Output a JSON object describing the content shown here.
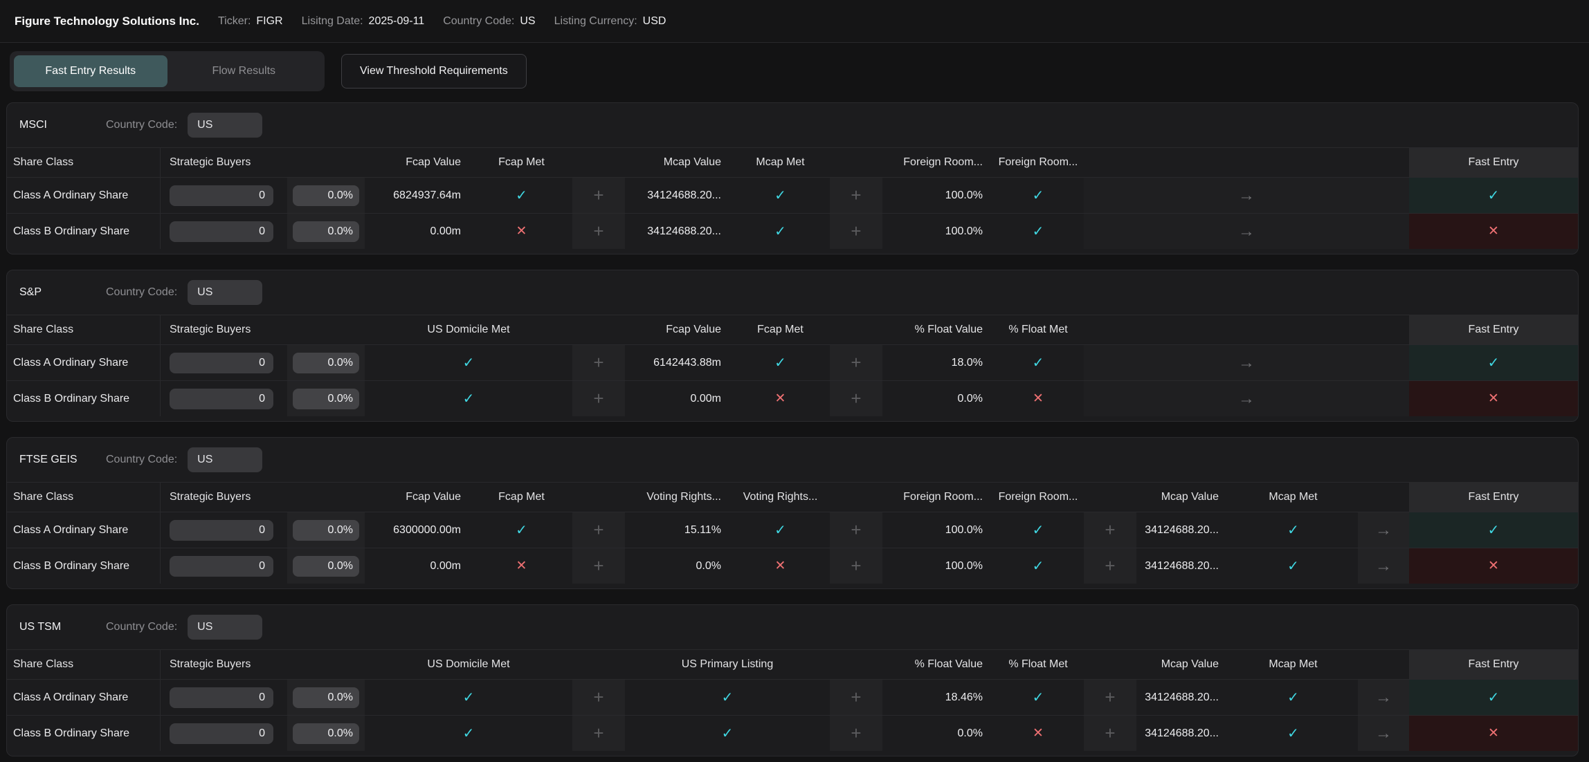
{
  "topbar": {
    "company": "Figure Technology Solutions Inc.",
    "fields": [
      {
        "label": "Ticker:",
        "value": "FIGR"
      },
      {
        "label": "Lisitng Date:",
        "value": "2025-09-11"
      },
      {
        "label": "Country Code:",
        "value": "US"
      },
      {
        "label": "Listing Currency:",
        "value": "USD"
      }
    ]
  },
  "tabs": {
    "fast_entry": "Fast Entry Results",
    "flow": "Flow Results",
    "view_threshold": "View Threshold Requirements"
  },
  "icons": {
    "plus": "+",
    "arrow": "→"
  },
  "colors": {
    "accent_teal": "#3f595c",
    "pass": "#40d7e2",
    "fail": "#ef7173",
    "fast_pass_bg": "#1b2625",
    "fast_fail_bg": "#271415"
  },
  "sections": [
    {
      "title": "MSCI",
      "country_label": "Country Code:",
      "country_code": "US",
      "columns": [
        "Share Class",
        "Strategic Buyers",
        "Fcap Value",
        "Fcap Met",
        "Mcap Value",
        "Mcap Met",
        "Foreign Room...",
        "Foreign Room...",
        "Fast Entry"
      ],
      "rows": [
        {
          "name": "Class A Ordinary Share",
          "buyers": "0",
          "buyers_pct": "0.0%",
          "fcap_value": "6824937.64m",
          "fcap_met": {
            "glyph": "✓",
            "status": "pass"
          },
          "mcap_value": "34124688.20...",
          "mcap_met": {
            "glyph": "✓",
            "status": "pass"
          },
          "foreign_room_value": "100.0%",
          "foreign_room_met": {
            "glyph": "✓",
            "status": "pass"
          },
          "fast_entry": {
            "glyph": "✓",
            "status": "pass"
          }
        },
        {
          "name": "Class B Ordinary Share",
          "buyers": "0",
          "buyers_pct": "0.0%",
          "fcap_value": "0.00m",
          "fcap_met": {
            "glyph": "✕",
            "status": "fail"
          },
          "mcap_value": "34124688.20...",
          "mcap_met": {
            "glyph": "✓",
            "status": "pass"
          },
          "foreign_room_value": "100.0%",
          "foreign_room_met": {
            "glyph": "✓",
            "status": "pass"
          },
          "fast_entry": {
            "glyph": "✕",
            "status": "fail"
          }
        }
      ]
    },
    {
      "title": "S&P",
      "country_label": "Country Code:",
      "country_code": "US",
      "columns": [
        "Share Class",
        "Strategic Buyers",
        "US Domicile Met",
        "Fcap Value",
        "Fcap Met",
        "% Float Value",
        "% Float Met",
        "Fast Entry"
      ],
      "rows": [
        {
          "name": "Class A Ordinary Share",
          "buyers": "0",
          "buyers_pct": "0.0%",
          "us_domicile_met": {
            "glyph": "✓",
            "status": "pass"
          },
          "fcap_value": "6142443.88m",
          "fcap_met": {
            "glyph": "✓",
            "status": "pass"
          },
          "float_value": "18.0%",
          "float_met": {
            "glyph": "✓",
            "status": "pass"
          },
          "fast_entry": {
            "glyph": "✓",
            "status": "pass"
          }
        },
        {
          "name": "Class B Ordinary Share",
          "buyers": "0",
          "buyers_pct": "0.0%",
          "us_domicile_met": {
            "glyph": "✓",
            "status": "pass"
          },
          "fcap_value": "0.00m",
          "fcap_met": {
            "glyph": "✕",
            "status": "fail"
          },
          "float_value": "0.0%",
          "float_met": {
            "glyph": "✕",
            "status": "fail"
          },
          "fast_entry": {
            "glyph": "✕",
            "status": "fail"
          }
        }
      ]
    },
    {
      "title": "FTSE GEIS",
      "country_label": "Country Code:",
      "country_code": "US",
      "columns": [
        "Share Class",
        "Strategic Buyers",
        "Fcap Value",
        "Fcap Met",
        "Voting Rights...",
        "Voting Rights...",
        "Foreign Room...",
        "Foreign Room...",
        "Mcap Value",
        "Mcap Met",
        "Fast Entry"
      ],
      "rows": [
        {
          "name": "Class A Ordinary Share",
          "buyers": "0",
          "buyers_pct": "0.0%",
          "fcap_value": "6300000.00m",
          "fcap_met": {
            "glyph": "✓",
            "status": "pass"
          },
          "voting_rights_value": "15.11%",
          "voting_rights_met": {
            "glyph": "✓",
            "status": "pass"
          },
          "foreign_room_value": "100.0%",
          "foreign_room_met": {
            "glyph": "✓",
            "status": "pass"
          },
          "mcap_value": "34124688.20...",
          "mcap_met": {
            "glyph": "✓",
            "status": "pass"
          },
          "fast_entry": {
            "glyph": "✓",
            "status": "pass"
          }
        },
        {
          "name": "Class B Ordinary Share",
          "buyers": "0",
          "buyers_pct": "0.0%",
          "fcap_value": "0.00m",
          "fcap_met": {
            "glyph": "✕",
            "status": "fail"
          },
          "voting_rights_value": "0.0%",
          "voting_rights_met": {
            "glyph": "✕",
            "status": "fail"
          },
          "foreign_room_value": "100.0%",
          "foreign_room_met": {
            "glyph": "✓",
            "status": "pass"
          },
          "mcap_value": "34124688.20...",
          "mcap_met": {
            "glyph": "✓",
            "status": "pass"
          },
          "fast_entry": {
            "glyph": "✕",
            "status": "fail"
          }
        }
      ]
    },
    {
      "title": "US TSM",
      "country_label": "Country Code:",
      "country_code": "US",
      "columns": [
        "Share Class",
        "Strategic Buyers",
        "US Domicile Met",
        "US Primary Listing",
        "% Float Value",
        "% Float Met",
        "Mcap Value",
        "Mcap Met",
        "Fast Entry"
      ],
      "rows": [
        {
          "name": "Class A Ordinary Share",
          "buyers": "0",
          "buyers_pct": "0.0%",
          "us_domicile_met": {
            "glyph": "✓",
            "status": "pass"
          },
          "us_primary_listing": {
            "glyph": "✓",
            "status": "pass"
          },
          "float_value": "18.46%",
          "float_met": {
            "glyph": "✓",
            "status": "pass"
          },
          "mcap_value": "34124688.20...",
          "mcap_met": {
            "glyph": "✓",
            "status": "pass"
          },
          "fast_entry": {
            "glyph": "✓",
            "status": "pass"
          }
        },
        {
          "name": "Class B Ordinary Share",
          "buyers": "0",
          "buyers_pct": "0.0%",
          "us_domicile_met": {
            "glyph": "✓",
            "status": "pass"
          },
          "us_primary_listing": {
            "glyph": "✓",
            "status": "pass"
          },
          "float_value": "0.0%",
          "float_met": {
            "glyph": "✕",
            "status": "fail"
          },
          "mcap_value": "34124688.20...",
          "mcap_met": {
            "glyph": "✓",
            "status": "pass"
          },
          "fast_entry": {
            "glyph": "✕",
            "status": "fail"
          }
        }
      ]
    }
  ]
}
